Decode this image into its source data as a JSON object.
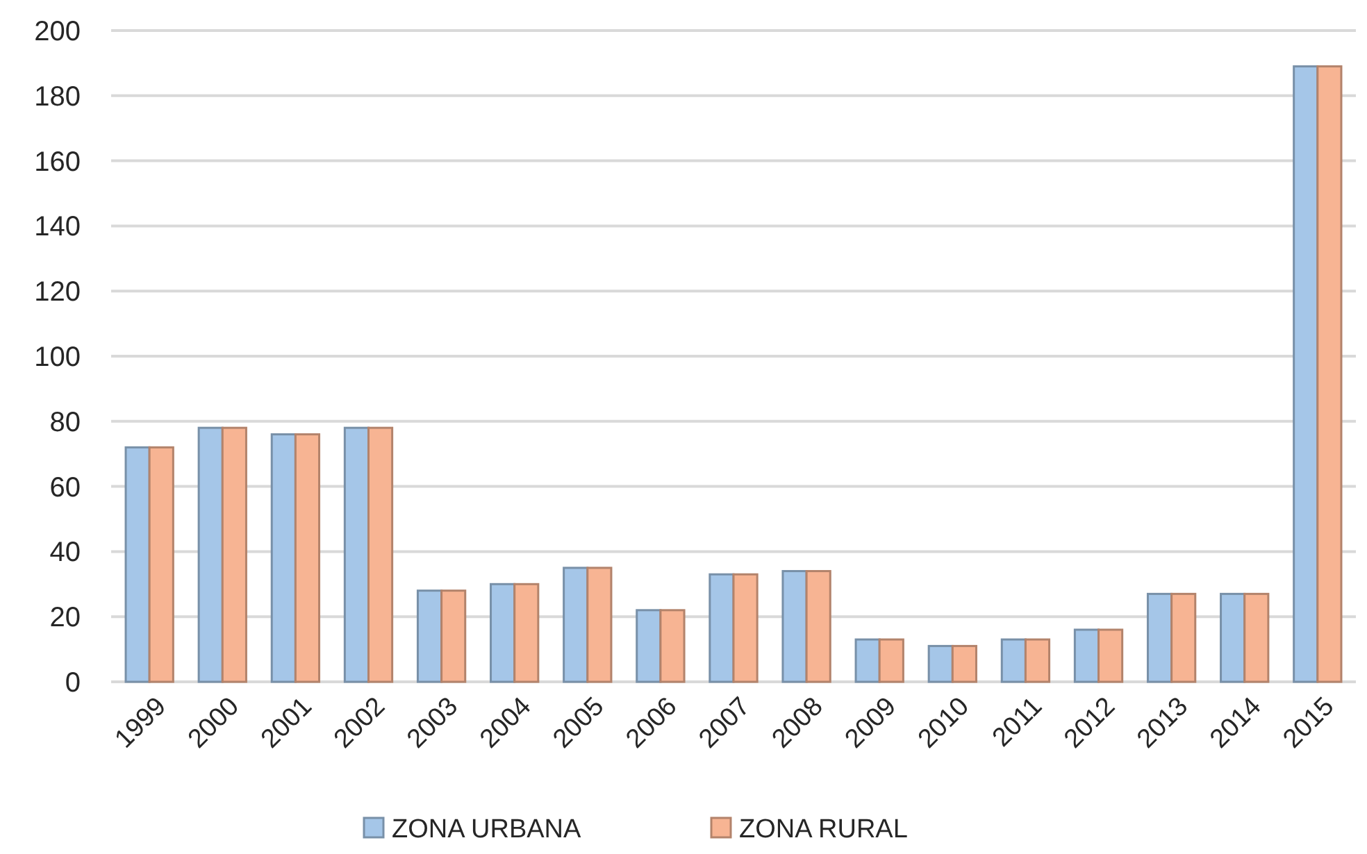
{
  "chart_data": {
    "type": "bar",
    "categories": [
      "1999",
      "2000",
      "2001",
      "2002",
      "2003",
      "2004",
      "2005",
      "2006",
      "2007",
      "2008",
      "2009",
      "2010",
      "2011",
      "2012",
      "2013",
      "2014",
      "2015"
    ],
    "series": [
      {
        "name": "ZONA URBANA",
        "color": "#a5c6e8",
        "values": [
          72,
          78,
          76,
          78,
          28,
          30,
          35,
          22,
          33,
          34,
          13,
          11,
          13,
          16,
          27,
          27,
          189
        ]
      },
      {
        "name": "ZONA RURAL",
        "color": "#f7b493",
        "values": [
          72,
          78,
          76,
          78,
          28,
          30,
          35,
          22,
          33,
          34,
          13,
          11,
          13,
          16,
          27,
          27,
          189
        ]
      }
    ],
    "ylim": [
      0,
      200
    ],
    "yticks": [
      0,
      20,
      40,
      60,
      80,
      100,
      120,
      140,
      160,
      180,
      200
    ],
    "grid": "y",
    "legend": "bottom"
  }
}
